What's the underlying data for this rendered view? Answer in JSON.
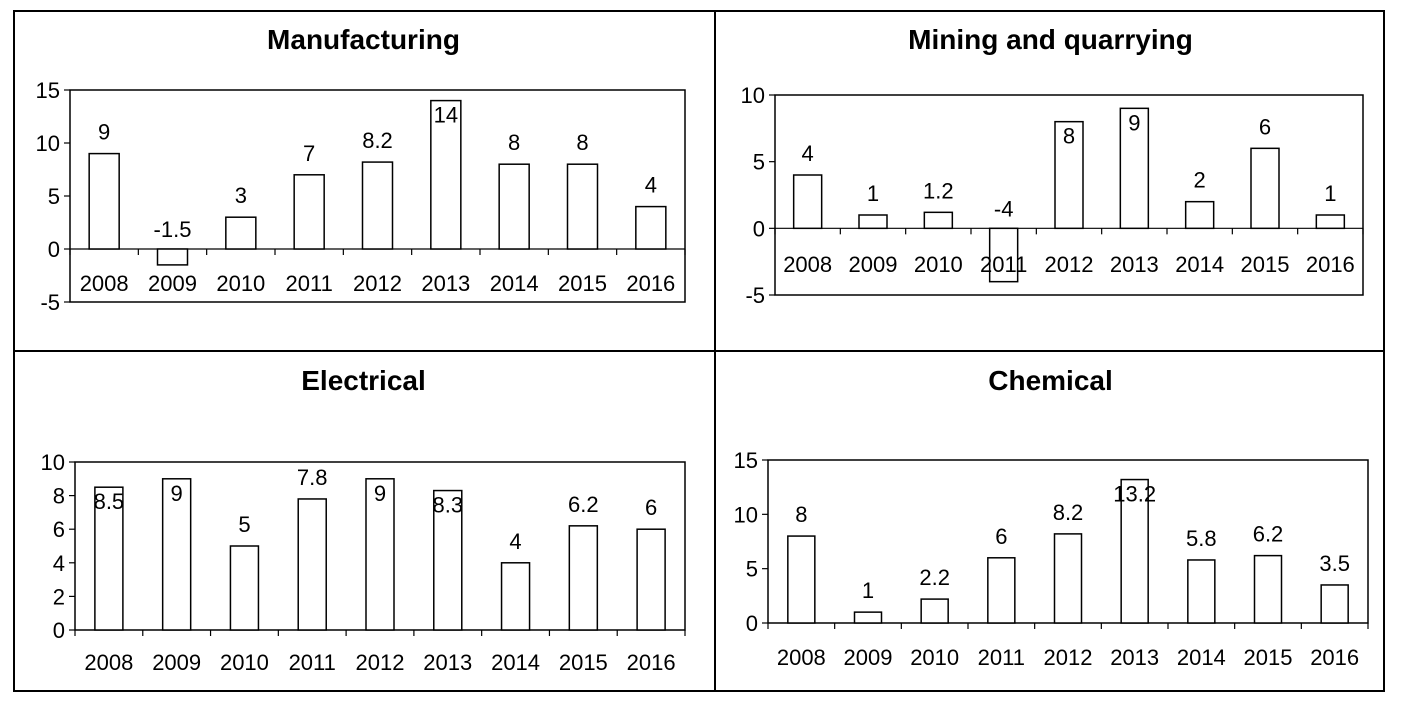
{
  "chart_data": [
    {
      "type": "bar",
      "title": "Manufacturing",
      "categories": [
        "2008",
        "2009",
        "2010",
        "2011",
        "2012",
        "2013",
        "2014",
        "2015",
        "2016"
      ],
      "values": [
        9,
        -1.5,
        3,
        7,
        8.2,
        14,
        8,
        8,
        4
      ],
      "value_labels": [
        "9",
        "-1.5",
        "3",
        "7",
        "8.2",
        "14",
        "8",
        "8",
        "4"
      ],
      "ylim": [
        -5,
        15
      ],
      "yticks": [
        -5,
        0,
        5,
        10,
        15
      ],
      "grid": false,
      "legend": "none"
    },
    {
      "type": "bar",
      "title": "Mining and quarrying",
      "categories": [
        "2008",
        "2009",
        "2010",
        "2011",
        "2012",
        "2013",
        "2014",
        "2015",
        "2016"
      ],
      "values": [
        4,
        1,
        1.2,
        -4,
        8,
        9,
        2,
        6,
        1
      ],
      "value_labels": [
        "4",
        "1",
        "1.2",
        "-4",
        "8",
        "9",
        "2",
        "6",
        "1"
      ],
      "ylim": [
        -5,
        10
      ],
      "yticks": [
        -5,
        0,
        5,
        10
      ],
      "grid": false,
      "legend": "none"
    },
    {
      "type": "bar",
      "title": "Electrical",
      "categories": [
        "2008",
        "2009",
        "2010",
        "2011",
        "2012",
        "2013",
        "2014",
        "2015",
        "2016"
      ],
      "values": [
        8.5,
        9,
        5,
        7.8,
        9,
        8.3,
        4,
        6.2,
        6
      ],
      "value_labels": [
        "8.5",
        "9",
        "5",
        "7.8",
        "9",
        "8.3",
        "4",
        "6.2",
        "6"
      ],
      "ylim": [
        0,
        10
      ],
      "yticks": [
        0,
        2,
        4,
        6,
        8,
        10
      ],
      "grid": false,
      "legend": "none"
    },
    {
      "type": "bar",
      "title": "Chemical",
      "categories": [
        "2008",
        "2009",
        "2010",
        "2011",
        "2012",
        "2013",
        "2014",
        "2015",
        "2016"
      ],
      "values": [
        8,
        1,
        2.2,
        6,
        8.2,
        13.2,
        5.8,
        6.2,
        3.5
      ],
      "value_labels": [
        "8",
        "1",
        "2.2",
        "6",
        "8.2",
        "13.2",
        "5.8",
        "6.2",
        "3.5"
      ],
      "ylim": [
        0,
        15
      ],
      "yticks": [
        0,
        5,
        10,
        15
      ],
      "grid": false,
      "legend": "none"
    }
  ]
}
